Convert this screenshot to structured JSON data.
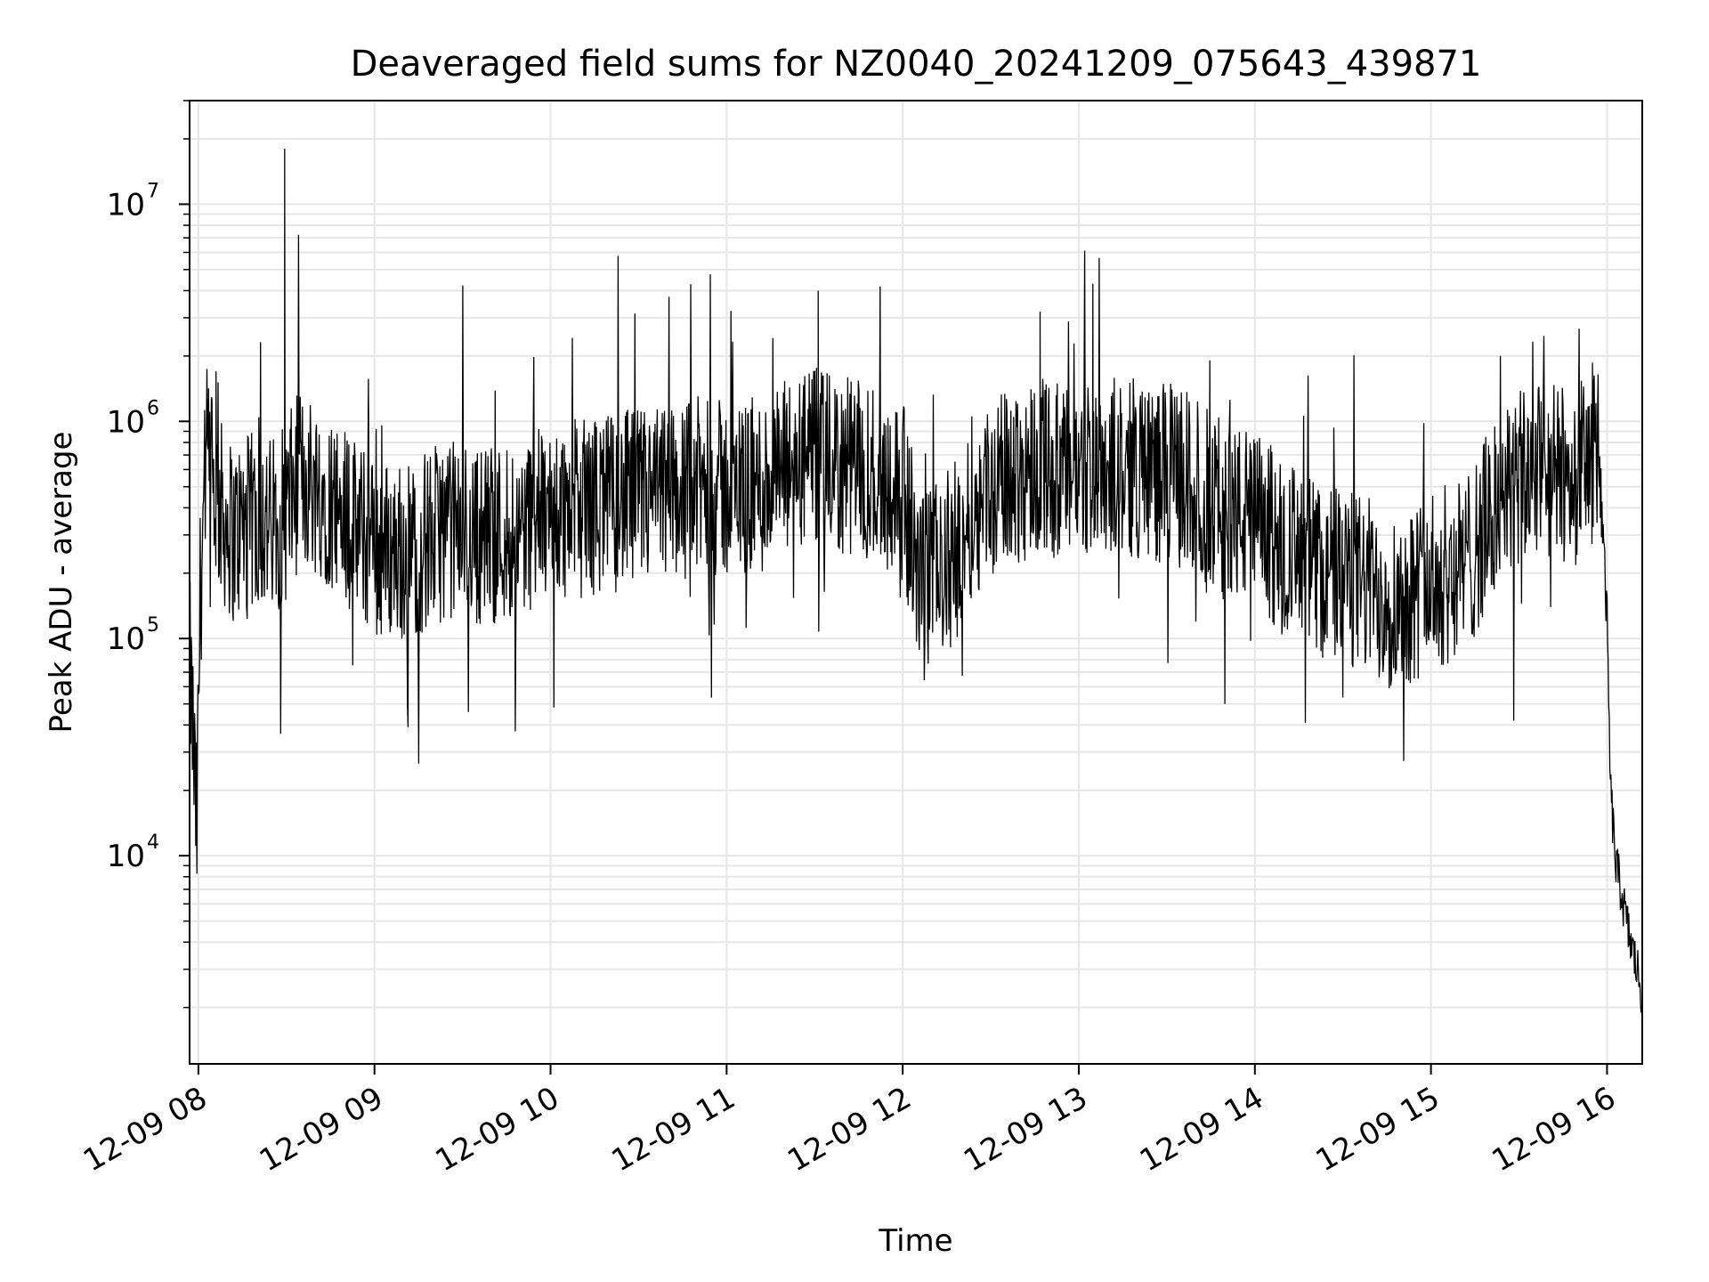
{
  "chart_data": {
    "type": "line",
    "title": "Deaveraged field sums for NZ0040_20241209_075643_439871",
    "xlabel": "Time",
    "ylabel": "Peak ADU - average",
    "yscale": "log",
    "ylim": [
      1100,
      30000000
    ],
    "xlim_hours": [
      7.95,
      16.2
    ],
    "x_ticks": [
      {
        "hour": 8,
        "label": "12-09 08"
      },
      {
        "hour": 9,
        "label": "12-09 09"
      },
      {
        "hour": 10,
        "label": "12-09 10"
      },
      {
        "hour": 11,
        "label": "12-09 11"
      },
      {
        "hour": 12,
        "label": "12-09 12"
      },
      {
        "hour": 13,
        "label": "12-09 13"
      },
      {
        "hour": 14,
        "label": "12-09 14"
      },
      {
        "hour": 15,
        "label": "12-09 15"
      },
      {
        "hour": 16,
        "label": "12-09 16"
      }
    ],
    "y_ticks": [
      {
        "value": 10000,
        "base": "10",
        "exp": "4"
      },
      {
        "value": 100000,
        "base": "10",
        "exp": "5"
      },
      {
        "value": 1000000,
        "base": "10",
        "exp": "6"
      },
      {
        "value": 10000000,
        "base": "10",
        "exp": "7"
      }
    ],
    "grid": true,
    "line_color": "#000000",
    "grid_color": "#e6e6e6",
    "series": [
      {
        "x": [
          7.95,
          7.97,
          7.99,
          8.01,
          8.03,
          8.05,
          8.07,
          8.1,
          8.15,
          8.2,
          8.25,
          8.3,
          8.35,
          8.4,
          8.45,
          8.5,
          8.52,
          8.55,
          8.6,
          8.7,
          8.8,
          8.9,
          9.0,
          9.2,
          9.4,
          9.6,
          9.8,
          10.0,
          10.2,
          10.4,
          10.6,
          10.8,
          11.0,
          11.2,
          11.4,
          11.5,
          11.6,
          11.8,
          12.0,
          12.1,
          12.2,
          12.3,
          12.4,
          12.6,
          12.8,
          12.9,
          13.0,
          13.1,
          13.2,
          13.4,
          13.6,
          13.8,
          14.0,
          14.2,
          14.4,
          14.6,
          14.8,
          15.0,
          15.2,
          15.4,
          15.6,
          15.8,
          15.9,
          15.95,
          16.0,
          16.02,
          16.05,
          16.08,
          16.1,
          16.12,
          16.15,
          16.18,
          16.2
        ],
        "y": [
          80000,
          35000,
          12000,
          150000,
          400000,
          700000,
          500000,
          450000,
          350000,
          300000,
          330000,
          340000,
          360000,
          330000,
          350000,
          380000,
          420000,
          500000,
          550000,
          480000,
          400000,
          310000,
          260000,
          250000,
          320000,
          300000,
          320000,
          380000,
          400000,
          430000,
          450000,
          500000,
          480000,
          500000,
          640000,
          680000,
          620000,
          600000,
          480000,
          180000,
          200000,
          250000,
          420000,
          550000,
          650000,
          550000,
          580000,
          650000,
          620000,
          600000,
          550000,
          400000,
          350000,
          250000,
          200000,
          180000,
          150000,
          180000,
          220000,
          450000,
          600000,
          550000,
          650000,
          900000,
          120000,
          20000,
          9000,
          7000,
          5500,
          4500,
          3500,
          2800,
          2200
        ],
        "spike_x": [
          8.49,
          11.52,
          13.08,
          12.78,
          8.1
        ],
        "spike_y": [
          18000000,
          4000000,
          4300000,
          3200000,
          1700000
        ]
      }
    ]
  }
}
